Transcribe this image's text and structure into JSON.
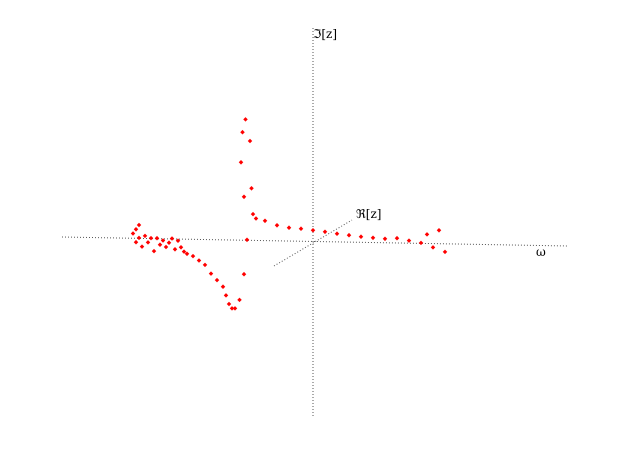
{
  "chart_data": {
    "type": "scatter",
    "projection": "3d",
    "axes": {
      "x_label": "ω",
      "y_label": "ℜ[z]",
      "z_label": "ℑ[z]"
    },
    "marker_color": "#ff0000",
    "grid": false,
    "series": [
      {
        "name": "",
        "values": [
          [
            -6.0,
            0.0,
            0.1
          ],
          [
            -5.9,
            0.0,
            0.2
          ],
          [
            -5.9,
            0.0,
            -0.1
          ],
          [
            -5.8,
            0.0,
            0.3
          ],
          [
            -5.8,
            0.0,
            0.0
          ],
          [
            -5.7,
            0.0,
            -0.2
          ],
          [
            -5.6,
            0.0,
            0.05
          ],
          [
            -5.5,
            0.0,
            -0.1
          ],
          [
            -5.4,
            0.0,
            0.0
          ],
          [
            -5.3,
            0.0,
            -0.3
          ],
          [
            -5.2,
            0.0,
            0.0
          ],
          [
            -5.1,
            0.0,
            -0.15
          ],
          [
            -5.0,
            0.0,
            -0.05
          ],
          [
            -4.9,
            0.0,
            -0.2
          ],
          [
            -4.8,
            0.0,
            -0.1
          ],
          [
            -4.7,
            0.0,
            0.0
          ],
          [
            -4.6,
            0.0,
            -0.25
          ],
          [
            -4.5,
            0.0,
            -0.05
          ],
          [
            -4.4,
            0.0,
            -0.2
          ],
          [
            -4.3,
            0.0,
            -0.3
          ],
          [
            -4.2,
            0.0,
            -0.35
          ],
          [
            -4.0,
            0.0,
            -0.4
          ],
          [
            -3.8,
            0.0,
            -0.5
          ],
          [
            -3.6,
            0.0,
            -0.6
          ],
          [
            -3.4,
            0.0,
            -0.8
          ],
          [
            -3.2,
            0.0,
            -0.95
          ],
          [
            -3.0,
            0.0,
            -1.1
          ],
          [
            -2.9,
            0.0,
            -1.3
          ],
          [
            -2.8,
            0.0,
            -1.5
          ],
          [
            -2.7,
            0.0,
            -1.6
          ],
          [
            -2.6,
            0.0,
            -1.6
          ],
          [
            -2.45,
            0.0,
            -1.4
          ],
          [
            -2.3,
            0.0,
            -0.8
          ],
          [
            -2.2,
            0.0,
            0.0
          ],
          [
            -2.3,
            0.0,
            1.0
          ],
          [
            -2.4,
            0.0,
            1.8
          ],
          [
            -2.35,
            0.0,
            2.5
          ],
          [
            -2.25,
            0.0,
            2.8
          ],
          [
            -2.1,
            0.0,
            2.3
          ],
          [
            -2.05,
            0.0,
            1.2
          ],
          [
            -2.0,
            0.0,
            0.6
          ],
          [
            -1.9,
            0.0,
            0.5
          ],
          [
            -1.6,
            0.0,
            0.45
          ],
          [
            -1.2,
            0.0,
            0.35
          ],
          [
            -0.8,
            0.0,
            0.3
          ],
          [
            -0.4,
            0.0,
            0.28
          ],
          [
            0.0,
            0.0,
            0.25
          ],
          [
            0.4,
            0.0,
            0.22
          ],
          [
            0.8,
            0.0,
            0.18
          ],
          [
            1.2,
            0.0,
            0.15
          ],
          [
            1.6,
            0.0,
            0.12
          ],
          [
            2.0,
            0.0,
            0.1
          ],
          [
            2.4,
            0.0,
            0.08
          ],
          [
            2.8,
            0.0,
            0.1
          ],
          [
            3.2,
            0.0,
            0.05
          ],
          [
            3.6,
            0.0,
            0.0
          ],
          [
            3.8,
            0.0,
            0.2
          ],
          [
            4.0,
            0.0,
            -0.1
          ],
          [
            4.2,
            0.0,
            0.3
          ],
          [
            4.4,
            0.0,
            -0.2
          ]
        ]
      }
    ]
  }
}
